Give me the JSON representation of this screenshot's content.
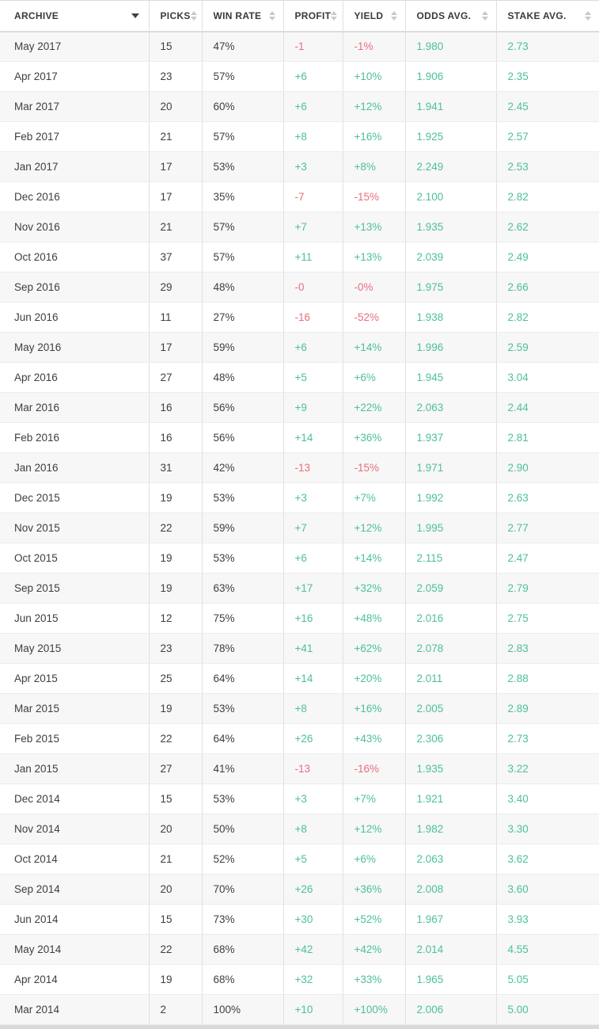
{
  "table": {
    "columns": [
      {
        "label": "ARCHIVE",
        "sort": "desc"
      },
      {
        "label": "PICKS",
        "sort": "none"
      },
      {
        "label": "WIN RATE",
        "sort": "none"
      },
      {
        "label": "PROFIT",
        "sort": "none"
      },
      {
        "label": "YIELD",
        "sort": "none"
      },
      {
        "label": "ODDS AVG.",
        "sort": "none"
      },
      {
        "label": "STAKE AVG.",
        "sort": "none"
      }
    ],
    "rows": [
      {
        "archive": "May 2017",
        "picks": "15",
        "win_rate": "47%",
        "profit": "-1",
        "yield": "-1%",
        "odds_avg": "1.980",
        "stake_avg": "2.73",
        "trend": "negative"
      },
      {
        "archive": "Apr 2017",
        "picks": "23",
        "win_rate": "57%",
        "profit": "+6",
        "yield": "+10%",
        "odds_avg": "1.906",
        "stake_avg": "2.35",
        "trend": "positive"
      },
      {
        "archive": "Mar 2017",
        "picks": "20",
        "win_rate": "60%",
        "profit": "+6",
        "yield": "+12%",
        "odds_avg": "1.941",
        "stake_avg": "2.45",
        "trend": "positive"
      },
      {
        "archive": "Feb 2017",
        "picks": "21",
        "win_rate": "57%",
        "profit": "+8",
        "yield": "+16%",
        "odds_avg": "1.925",
        "stake_avg": "2.57",
        "trend": "positive"
      },
      {
        "archive": "Jan 2017",
        "picks": "17",
        "win_rate": "53%",
        "profit": "+3",
        "yield": "+8%",
        "odds_avg": "2.249",
        "stake_avg": "2.53",
        "trend": "positive"
      },
      {
        "archive": "Dec 2016",
        "picks": "17",
        "win_rate": "35%",
        "profit": "-7",
        "yield": "-15%",
        "odds_avg": "2.100",
        "stake_avg": "2.82",
        "trend": "negative"
      },
      {
        "archive": "Nov 2016",
        "picks": "21",
        "win_rate": "57%",
        "profit": "+7",
        "yield": "+13%",
        "odds_avg": "1.935",
        "stake_avg": "2.62",
        "trend": "positive"
      },
      {
        "archive": "Oct 2016",
        "picks": "37",
        "win_rate": "57%",
        "profit": "+11",
        "yield": "+13%",
        "odds_avg": "2.039",
        "stake_avg": "2.49",
        "trend": "positive"
      },
      {
        "archive": "Sep 2016",
        "picks": "29",
        "win_rate": "48%",
        "profit": "-0",
        "yield": "-0%",
        "odds_avg": "1.975",
        "stake_avg": "2.66",
        "trend": "negative"
      },
      {
        "archive": "Jun 2016",
        "picks": "11",
        "win_rate": "27%",
        "profit": "-16",
        "yield": "-52%",
        "odds_avg": "1.938",
        "stake_avg": "2.82",
        "trend": "negative"
      },
      {
        "archive": "May 2016",
        "picks": "17",
        "win_rate": "59%",
        "profit": "+6",
        "yield": "+14%",
        "odds_avg": "1.996",
        "stake_avg": "2.59",
        "trend": "positive"
      },
      {
        "archive": "Apr 2016",
        "picks": "27",
        "win_rate": "48%",
        "profit": "+5",
        "yield": "+6%",
        "odds_avg": "1.945",
        "stake_avg": "3.04",
        "trend": "positive"
      },
      {
        "archive": "Mar 2016",
        "picks": "16",
        "win_rate": "56%",
        "profit": "+9",
        "yield": "+22%",
        "odds_avg": "2.063",
        "stake_avg": "2.44",
        "trend": "positive"
      },
      {
        "archive": "Feb 2016",
        "picks": "16",
        "win_rate": "56%",
        "profit": "+14",
        "yield": "+36%",
        "odds_avg": "1.937",
        "stake_avg": "2.81",
        "trend": "positive"
      },
      {
        "archive": "Jan 2016",
        "picks": "31",
        "win_rate": "42%",
        "profit": "-13",
        "yield": "-15%",
        "odds_avg": "1.971",
        "stake_avg": "2.90",
        "trend": "negative"
      },
      {
        "archive": "Dec 2015",
        "picks": "19",
        "win_rate": "53%",
        "profit": "+3",
        "yield": "+7%",
        "odds_avg": "1.992",
        "stake_avg": "2.63",
        "trend": "positive"
      },
      {
        "archive": "Nov 2015",
        "picks": "22",
        "win_rate": "59%",
        "profit": "+7",
        "yield": "+12%",
        "odds_avg": "1.995",
        "stake_avg": "2.77",
        "trend": "positive"
      },
      {
        "archive": "Oct 2015",
        "picks": "19",
        "win_rate": "53%",
        "profit": "+6",
        "yield": "+14%",
        "odds_avg": "2.115",
        "stake_avg": "2.47",
        "trend": "positive"
      },
      {
        "archive": "Sep 2015",
        "picks": "19",
        "win_rate": "63%",
        "profit": "+17",
        "yield": "+32%",
        "odds_avg": "2.059",
        "stake_avg": "2.79",
        "trend": "positive"
      },
      {
        "archive": "Jun 2015",
        "picks": "12",
        "win_rate": "75%",
        "profit": "+16",
        "yield": "+48%",
        "odds_avg": "2.016",
        "stake_avg": "2.75",
        "trend": "positive"
      },
      {
        "archive": "May 2015",
        "picks": "23",
        "win_rate": "78%",
        "profit": "+41",
        "yield": "+62%",
        "odds_avg": "2.078",
        "stake_avg": "2.83",
        "trend": "positive"
      },
      {
        "archive": "Apr 2015",
        "picks": "25",
        "win_rate": "64%",
        "profit": "+14",
        "yield": "+20%",
        "odds_avg": "2.011",
        "stake_avg": "2.88",
        "trend": "positive"
      },
      {
        "archive": "Mar 2015",
        "picks": "19",
        "win_rate": "53%",
        "profit": "+8",
        "yield": "+16%",
        "odds_avg": "2.005",
        "stake_avg": "2.89",
        "trend": "positive"
      },
      {
        "archive": "Feb 2015",
        "picks": "22",
        "win_rate": "64%",
        "profit": "+26",
        "yield": "+43%",
        "odds_avg": "2.306",
        "stake_avg": "2.73",
        "trend": "positive"
      },
      {
        "archive": "Jan 2015",
        "picks": "27",
        "win_rate": "41%",
        "profit": "-13",
        "yield": "-16%",
        "odds_avg": "1.935",
        "stake_avg": "3.22",
        "trend": "negative"
      },
      {
        "archive": "Dec 2014",
        "picks": "15",
        "win_rate": "53%",
        "profit": "+3",
        "yield": "+7%",
        "odds_avg": "1.921",
        "stake_avg": "3.40",
        "trend": "positive"
      },
      {
        "archive": "Nov 2014",
        "picks": "20",
        "win_rate": "50%",
        "profit": "+8",
        "yield": "+12%",
        "odds_avg": "1.982",
        "stake_avg": "3.30",
        "trend": "positive"
      },
      {
        "archive": "Oct 2014",
        "picks": "21",
        "win_rate": "52%",
        "profit": "+5",
        "yield": "+6%",
        "odds_avg": "2.063",
        "stake_avg": "3.62",
        "trend": "positive"
      },
      {
        "archive": "Sep 2014",
        "picks": "20",
        "win_rate": "70%",
        "profit": "+26",
        "yield": "+36%",
        "odds_avg": "2.008",
        "stake_avg": "3.60",
        "trend": "positive"
      },
      {
        "archive": "Jun 2014",
        "picks": "15",
        "win_rate": "73%",
        "profit": "+30",
        "yield": "+52%",
        "odds_avg": "1.967",
        "stake_avg": "3.93",
        "trend": "positive"
      },
      {
        "archive": "May 2014",
        "picks": "22",
        "win_rate": "68%",
        "profit": "+42",
        "yield": "+42%",
        "odds_avg": "2.014",
        "stake_avg": "4.55",
        "trend": "positive"
      },
      {
        "archive": "Apr 2014",
        "picks": "19",
        "win_rate": "68%",
        "profit": "+32",
        "yield": "+33%",
        "odds_avg": "1.965",
        "stake_avg": "5.05",
        "trend": "positive"
      },
      {
        "archive": "Mar 2014",
        "picks": "2",
        "win_rate": "100%",
        "profit": "+10",
        "yield": "+100%",
        "odds_avg": "2.006",
        "stake_avg": "5.00",
        "trend": "positive"
      }
    ]
  },
  "colors": {
    "positive": "#4cbf9f",
    "negative": "#e76e7d"
  }
}
